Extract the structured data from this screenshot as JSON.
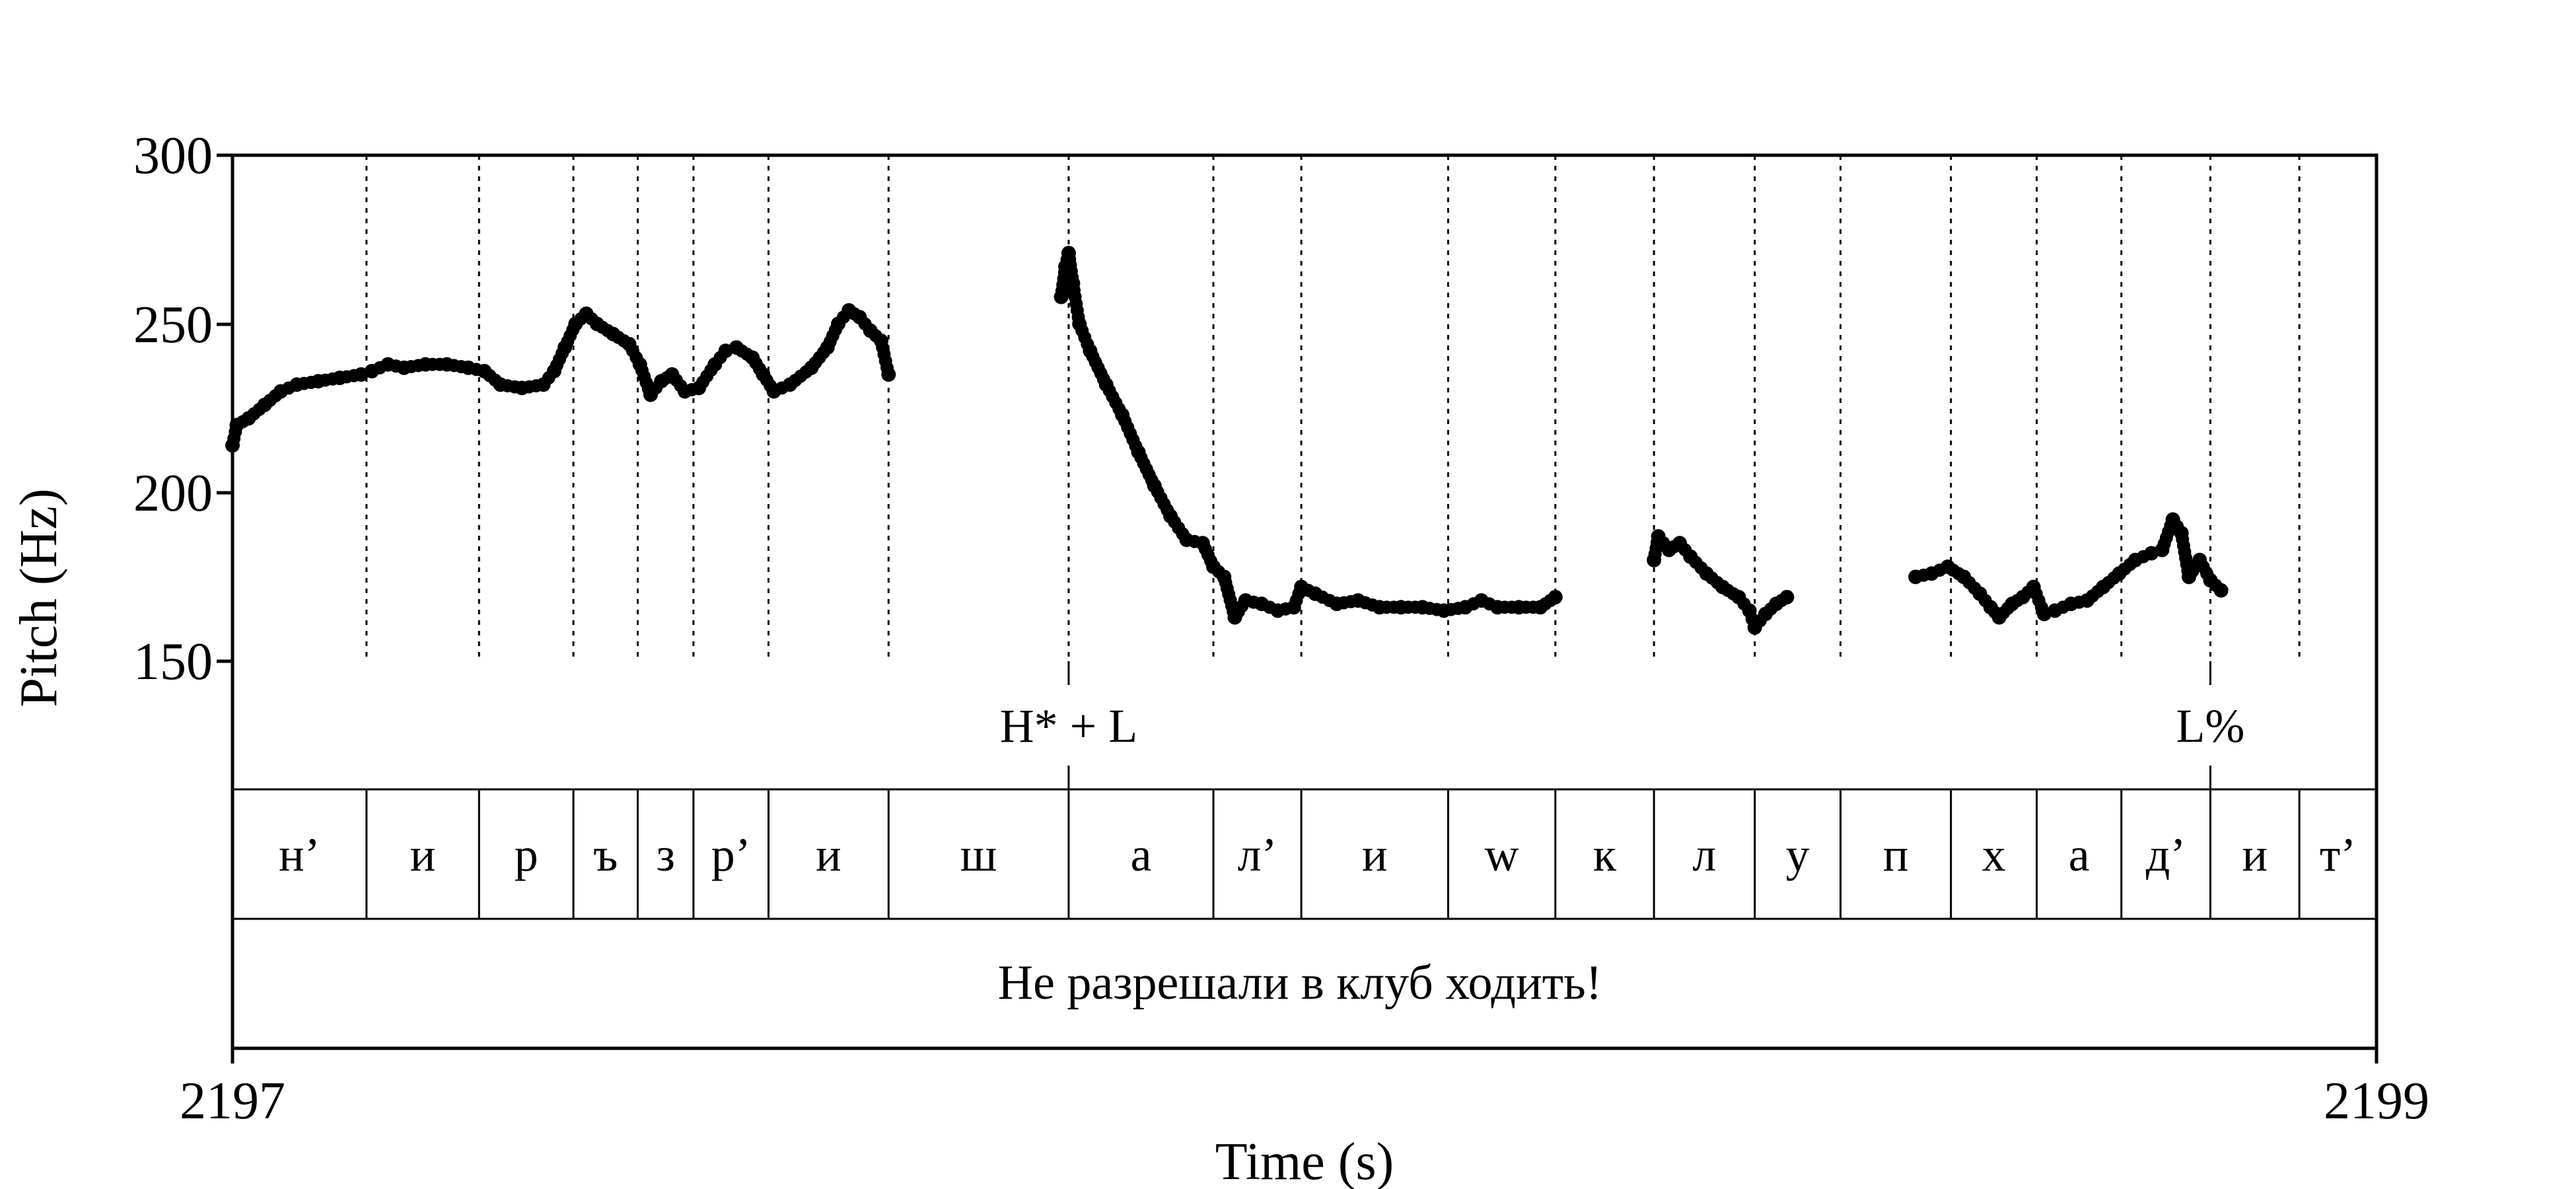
{
  "chart_data": {
    "type": "scatter",
    "title": "",
    "xlabel": "Time (s)",
    "ylabel": "Pitch (Hz)",
    "xlim": [
      2197,
      2199
    ],
    "ylim": [
      150,
      300
    ],
    "x_ticks": [
      "2197",
      "2199"
    ],
    "y_ticks": [
      "150",
      "200",
      "250",
      "300"
    ],
    "grid": false,
    "boundaries": [
      2197.0,
      2197.125,
      2197.23,
      2197.318,
      2197.378,
      2197.43,
      2197.5,
      2197.612,
      2197.78,
      2197.915,
      2197.997,
      2198.134,
      2198.234,
      2198.326,
      2198.42,
      2198.5,
      2198.603,
      2198.683,
      2198.762,
      2198.845,
      2198.928,
      2199.0
    ],
    "segments": [
      "н’",
      "и",
      "р",
      "ъ",
      "з",
      "р’",
      "и",
      "ш",
      "а",
      "л’",
      "и",
      "w",
      "к",
      "л",
      "у",
      "п",
      "х",
      "а",
      "д’",
      "и",
      "т’"
    ],
    "tones": [
      {
        "label": "H* + L",
        "time": 2197.78
      },
      {
        "label": "L%",
        "time": 2198.845
      }
    ],
    "sentence": "Не разрешали в клуб ходить!",
    "pitch_series": [
      [
        [
          2197.0,
          214
        ],
        [
          2197.004,
          220
        ],
        [
          2197.015,
          222
        ],
        [
          2197.03,
          226
        ],
        [
          2197.045,
          230
        ],
        [
          2197.06,
          232
        ],
        [
          2197.08,
          233
        ],
        [
          2197.1,
          234
        ],
        [
          2197.12,
          235
        ],
        [
          2197.13,
          236
        ],
        [
          2197.145,
          238
        ],
        [
          2197.16,
          237
        ],
        [
          2197.18,
          238
        ],
        [
          2197.2,
          238
        ],
        [
          2197.22,
          237
        ],
        [
          2197.235,
          236
        ],
        [
          2197.25,
          232
        ],
        [
          2197.27,
          231
        ],
        [
          2197.29,
          232
        ],
        [
          2197.3,
          236
        ],
        [
          2197.31,
          243
        ],
        [
          2197.32,
          250
        ],
        [
          2197.33,
          253
        ],
        [
          2197.34,
          250
        ],
        [
          2197.355,
          247
        ],
        [
          2197.37,
          244
        ],
        [
          2197.38,
          238
        ],
        [
          2197.39,
          229
        ],
        [
          2197.4,
          233
        ],
        [
          2197.41,
          235
        ],
        [
          2197.422,
          230
        ],
        [
          2197.435,
          231
        ],
        [
          2197.45,
          238
        ],
        [
          2197.46,
          242
        ],
        [
          2197.47,
          243
        ],
        [
          2197.485,
          240
        ],
        [
          2197.495,
          235
        ],
        [
          2197.505,
          230
        ],
        [
          2197.52,
          232
        ],
        [
          2197.54,
          237
        ],
        [
          2197.555,
          243
        ],
        [
          2197.565,
          250
        ],
        [
          2197.575,
          254
        ],
        [
          2197.585,
          252
        ],
        [
          2197.595,
          248
        ],
        [
          2197.605,
          245
        ],
        [
          2197.612,
          235
        ]
      ],
      [
        [
          2197.773,
          258
        ],
        [
          2197.777,
          267
        ],
        [
          2197.78,
          271
        ],
        [
          2197.784,
          262
        ],
        [
          2197.79,
          250
        ],
        [
          2197.8,
          242
        ],
        [
          2197.815,
          232
        ],
        [
          2197.83,
          223
        ],
        [
          2197.845,
          212
        ],
        [
          2197.86,
          202
        ],
        [
          2197.875,
          193
        ],
        [
          2197.89,
          186
        ],
        [
          2197.905,
          185
        ],
        [
          2197.915,
          178
        ],
        [
          2197.925,
          175
        ],
        [
          2197.935,
          163
        ],
        [
          2197.945,
          168
        ],
        [
          2197.96,
          167
        ],
        [
          2197.975,
          165
        ],
        [
          2197.99,
          166
        ],
        [
          2197.997,
          172
        ],
        [
          2198.01,
          170
        ],
        [
          2198.03,
          167
        ],
        [
          2198.05,
          168
        ],
        [
          2198.07,
          166
        ],
        [
          2198.09,
          166
        ],
        [
          2198.11,
          166
        ],
        [
          2198.13,
          165
        ],
        [
          2198.15,
          166
        ],
        [
          2198.165,
          168
        ],
        [
          2198.18,
          166
        ],
        [
          2198.2,
          166
        ],
        [
          2198.22,
          166
        ],
        [
          2198.234,
          169
        ]
      ],
      [
        [
          2198.326,
          180
        ],
        [
          2198.33,
          187
        ],
        [
          2198.34,
          183
        ],
        [
          2198.35,
          185
        ],
        [
          2198.36,
          181
        ],
        [
          2198.375,
          176
        ],
        [
          2198.39,
          172
        ],
        [
          2198.405,
          169
        ],
        [
          2198.415,
          165
        ],
        [
          2198.42,
          160
        ],
        [
          2198.43,
          164
        ],
        [
          2198.44,
          167
        ],
        [
          2198.45,
          169
        ]
      ],
      [
        [
          2198.57,
          175
        ],
        [
          2198.585,
          176
        ],
        [
          2198.6,
          178
        ],
        [
          2198.615,
          175
        ],
        [
          2198.63,
          170
        ],
        [
          2198.64,
          166
        ],
        [
          2198.648,
          163
        ],
        [
          2198.66,
          167
        ],
        [
          2198.67,
          169
        ],
        [
          2198.68,
          172
        ],
        [
          2198.69,
          164
        ],
        [
          2198.7,
          165
        ],
        [
          2198.715,
          167
        ],
        [
          2198.73,
          168
        ],
        [
          2198.745,
          172
        ],
        [
          2198.76,
          176
        ],
        [
          2198.775,
          180
        ],
        [
          2198.79,
          182
        ],
        [
          2198.8,
          183
        ],
        [
          2198.81,
          192
        ],
        [
          2198.818,
          188
        ],
        [
          2198.825,
          175
        ],
        [
          2198.835,
          180
        ],
        [
          2198.845,
          174
        ],
        [
          2198.855,
          171
        ]
      ]
    ]
  }
}
